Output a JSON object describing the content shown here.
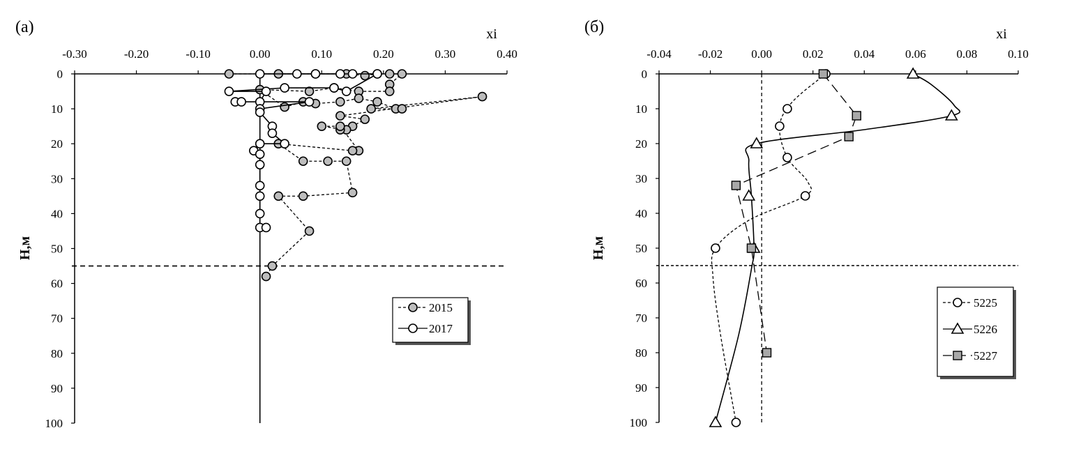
{
  "chart_data": [
    {
      "panel_label": "(а)",
      "type": "line",
      "xlabel": "xi",
      "ylabel": "H,м",
      "xlim": [
        -0.3,
        0.4
      ],
      "ylim": [
        0,
        100
      ],
      "y_inverted": true,
      "x_ticks": [
        "-0.30",
        "-0.20",
        "-0.10",
        "0.00",
        "0.10",
        "0.20",
        "0.30",
        "0.40"
      ],
      "x_tick_values": [
        -0.3,
        -0.2,
        -0.1,
        0.0,
        0.1,
        0.2,
        0.3,
        0.4
      ],
      "y_ticks": [
        "0",
        "10",
        "20",
        "30",
        "40",
        "50",
        "60",
        "70",
        "80",
        "90",
        "100"
      ],
      "y_tick_values": [
        0,
        10,
        20,
        30,
        40,
        50,
        60,
        70,
        80,
        90,
        100
      ],
      "hline_y": 55,
      "vline_x": 0.0,
      "legend_position": "lower-right",
      "legend": [
        "2015",
        "2017"
      ],
      "series": [
        {
          "name": "2015",
          "color": "#bdbdbd",
          "marker": "circle-filled",
          "line": "short-dash",
          "points": [
            [
              -0.05,
              0
            ],
            [
              0.03,
              0
            ],
            [
              0.09,
              0
            ],
            [
              0.14,
              0
            ],
            [
              0.17,
              0.5
            ],
            [
              0.19,
              0
            ],
            [
              0.21,
              0
            ],
            [
              0.23,
              0
            ],
            [
              0.21,
              3
            ],
            [
              0.21,
              5
            ],
            [
              0.16,
              5
            ],
            [
              0.12,
              4
            ],
            [
              0.08,
              5
            ],
            [
              0.0,
              4.5
            ],
            [
              0.04,
              9.5
            ],
            [
              0.07,
              8
            ],
            [
              0.09,
              8.5
            ],
            [
              0.13,
              8
            ],
            [
              0.16,
              7
            ],
            [
              0.19,
              8
            ],
            [
              0.22,
              10
            ],
            [
              0.23,
              10
            ],
            [
              0.18,
              10
            ],
            [
              0.36,
              6.5
            ],
            [
              0.13,
              12
            ],
            [
              0.17,
              13
            ],
            [
              0.15,
              15
            ],
            [
              0.1,
              15
            ],
            [
              0.14,
              16
            ],
            [
              0.13,
              16
            ],
            [
              0.13,
              15
            ],
            [
              0.16,
              22
            ],
            [
              0.15,
              22
            ],
            [
              0.03,
              20
            ],
            [
              0.07,
              25
            ],
            [
              0.11,
              25
            ],
            [
              0.14,
              25
            ],
            [
              0.15,
              34
            ],
            [
              0.07,
              35
            ],
            [
              0.03,
              35
            ],
            [
              0.08,
              45
            ],
            [
              0.02,
              55
            ],
            [
              0.01,
              58
            ]
          ]
        },
        {
          "name": "2017",
          "color": "#ffffff",
          "marker": "circle-open",
          "line": "solid",
          "points": [
            [
              0.0,
              0
            ],
            [
              0.06,
              0
            ],
            [
              0.09,
              0
            ],
            [
              0.13,
              0
            ],
            [
              0.15,
              0
            ],
            [
              0.19,
              0
            ],
            [
              0.14,
              5
            ],
            [
              0.12,
              4
            ],
            [
              0.04,
              4
            ],
            [
              -0.05,
              5
            ],
            [
              0.01,
              5
            ],
            [
              0.0,
              8
            ],
            [
              -0.04,
              8
            ],
            [
              -0.03,
              8
            ],
            [
              0.08,
              8
            ],
            [
              0.0,
              10
            ],
            [
              0.0,
              11
            ],
            [
              0.02,
              15
            ],
            [
              0.02,
              17
            ],
            [
              0.04,
              20
            ],
            [
              0.0,
              20
            ],
            [
              -0.01,
              22
            ],
            [
              0.0,
              23
            ],
            [
              0.0,
              26
            ],
            [
              0.0,
              32
            ],
            [
              0.0,
              35
            ],
            [
              0.0,
              40
            ],
            [
              0.0,
              44
            ],
            [
              0.01,
              44
            ]
          ]
        }
      ]
    },
    {
      "panel_label": "(б)",
      "type": "line",
      "xlabel": "xi",
      "ylabel": "H,м",
      "xlim": [
        -0.04,
        0.1
      ],
      "ylim": [
        0,
        100
      ],
      "y_inverted": true,
      "x_ticks": [
        "-0.04",
        "-0.02",
        "0.00",
        "0.02",
        "0.04",
        "0.06",
        "0.08",
        "0.10"
      ],
      "x_tick_values": [
        -0.04,
        -0.02,
        0.0,
        0.02,
        0.04,
        0.06,
        0.08,
        0.1
      ],
      "y_ticks": [
        "0",
        "10",
        "20",
        "30",
        "40",
        "50",
        "60",
        "70",
        "80",
        "90",
        "100"
      ],
      "y_tick_values": [
        0,
        10,
        20,
        30,
        40,
        50,
        60,
        70,
        80,
        90,
        100
      ],
      "hline_y": 55,
      "vline_x": 0.0,
      "legend_position": "lower-right",
      "legend": [
        "5225",
        "5226",
        "5227"
      ],
      "series": [
        {
          "name": "5225",
          "color": "#ffffff",
          "marker": "circle-open",
          "line": "short-dash",
          "points": [
            [
              0.025,
              0
            ],
            [
              0.01,
              10
            ],
            [
              0.007,
              15
            ],
            [
              0.01,
              24
            ],
            [
              0.017,
              35
            ],
            [
              -0.018,
              50
            ],
            [
              -0.01,
              100
            ]
          ],
          "curve": [
            [
              0.025,
              0
            ],
            [
              0.012,
              8
            ],
            [
              0.007,
              15
            ],
            [
              0.01,
              24
            ],
            [
              0.018,
              31
            ],
            [
              0.017,
              35
            ],
            [
              -0.005,
              42
            ],
            [
              -0.018,
              50
            ],
            [
              -0.019,
              58
            ],
            [
              -0.016,
              75
            ],
            [
              -0.01,
              100
            ]
          ]
        },
        {
          "name": "5226",
          "color": "#ffffff",
          "marker": "triangle-open",
          "line": "solid",
          "points": [
            [
              0.059,
              0
            ],
            [
              0.074,
              12
            ],
            [
              -0.002,
              20
            ],
            [
              -0.005,
              35
            ],
            [
              -0.003,
              50
            ],
            [
              -0.018,
              100
            ]
          ],
          "curve": [
            [
              0.059,
              0
            ],
            [
              0.066,
              3
            ],
            [
              0.075,
              9
            ],
            [
              0.074,
              12
            ],
            [
              0.04,
              16
            ],
            [
              -0.002,
              20
            ],
            [
              -0.005,
              25
            ],
            [
              -0.004,
              35
            ],
            [
              -0.003,
              50
            ],
            [
              -0.004,
              56
            ],
            [
              -0.009,
              75
            ],
            [
              -0.018,
              100
            ]
          ]
        },
        {
          "name": "5227",
          "color": "#a8a8a8",
          "marker": "square-filled",
          "line": "long-dash",
          "points": [
            [
              0.024,
              0
            ],
            [
              0.037,
              12
            ],
            [
              0.034,
              18
            ],
            [
              -0.01,
              32
            ],
            [
              -0.004,
              50
            ],
            [
              0.002,
              80
            ]
          ],
          "curve": [
            [
              0.024,
              0
            ],
            [
              0.037,
              12
            ],
            [
              0.034,
              18
            ],
            [
              -0.01,
              32
            ],
            [
              -0.004,
              50
            ],
            [
              0.002,
              80
            ]
          ]
        }
      ]
    }
  ]
}
